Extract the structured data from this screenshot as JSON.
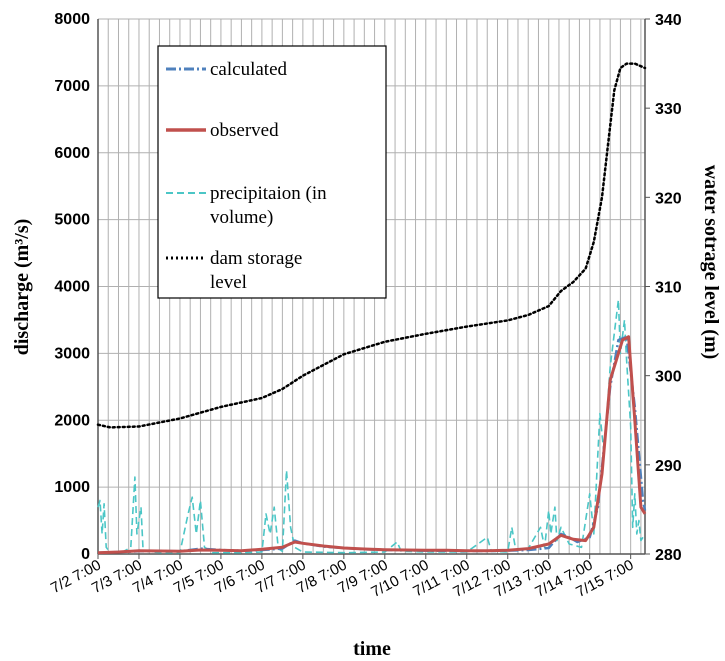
{
  "chart_data": {
    "type": "line",
    "xlabel": "time",
    "ylabel_left": "discharge (m³/s)",
    "ylabel_right": "water sotrage level (m)",
    "x_ticks": [
      "7/2 7:00",
      "7/3 7:00",
      "7/4 7:00",
      "7/5 7:00",
      "7/6 7:00",
      "7/7 7:00",
      "7/8 7:00",
      "7/9 7:00",
      "7/10 7:00",
      "7/11 7:00",
      "7/12 7:00",
      "7/13 7:00",
      "7/14 7:00",
      "7/15 7:00"
    ],
    "x_range_days": [
      0,
      13.35
    ],
    "ylim_left": [
      0,
      8000
    ],
    "y_ticks_left": [
      0,
      1000,
      2000,
      3000,
      4000,
      5000,
      6000,
      7000,
      8000
    ],
    "ylim_right": [
      280,
      340
    ],
    "y_ticks_right": [
      280,
      290,
      300,
      310,
      320,
      330,
      340
    ],
    "grid": true,
    "legend_position": "top-left",
    "series": [
      {
        "name": "calculated",
        "axis": "left",
        "color": "#4f81bd",
        "style": "dash-dot",
        "points": [
          [
            0,
            20
          ],
          [
            0.5,
            30
          ],
          [
            1,
            40
          ],
          [
            1.5,
            45
          ],
          [
            2,
            40
          ],
          [
            2.5,
            80
          ],
          [
            3,
            60
          ],
          [
            3.5,
            50
          ],
          [
            4,
            60
          ],
          [
            4.5,
            80
          ],
          [
            4.8,
            200
          ],
          [
            5,
            160
          ],
          [
            5.5,
            110
          ],
          [
            6,
            90
          ],
          [
            6.5,
            70
          ],
          [
            7,
            60
          ],
          [
            7.5,
            55
          ],
          [
            8,
            50
          ],
          [
            8.5,
            50
          ],
          [
            9,
            45
          ],
          [
            9.5,
            45
          ],
          [
            10,
            50
          ],
          [
            10.5,
            60
          ],
          [
            11,
            90
          ],
          [
            11.3,
            300
          ],
          [
            11.5,
            250
          ],
          [
            11.7,
            180
          ],
          [
            12,
            250
          ],
          [
            12.2,
            700
          ],
          [
            12.5,
            2500
          ],
          [
            12.7,
            3200
          ],
          [
            12.9,
            3250
          ],
          [
            13.1,
            2200
          ],
          [
            13.3,
            800
          ],
          [
            13.35,
            650
          ]
        ]
      },
      {
        "name": "observed",
        "axis": "left",
        "color": "#c0504d",
        "style": "solid",
        "points": [
          [
            0,
            20
          ],
          [
            0.5,
            30
          ],
          [
            1,
            50
          ],
          [
            1.5,
            45
          ],
          [
            2,
            40
          ],
          [
            2.5,
            60
          ],
          [
            3,
            55
          ],
          [
            3.5,
            50
          ],
          [
            4,
            70
          ],
          [
            4.5,
            100
          ],
          [
            4.8,
            180
          ],
          [
            5,
            160
          ],
          [
            5.5,
            120
          ],
          [
            6,
            90
          ],
          [
            6.5,
            75
          ],
          [
            7,
            65
          ],
          [
            7.5,
            60
          ],
          [
            8,
            55
          ],
          [
            8.5,
            55
          ],
          [
            9,
            50
          ],
          [
            9.5,
            50
          ],
          [
            10,
            55
          ],
          [
            10.5,
            80
          ],
          [
            11,
            150
          ],
          [
            11.3,
            280
          ],
          [
            11.6,
            220
          ],
          [
            11.9,
            200
          ],
          [
            12.1,
            400
          ],
          [
            12.3,
            1200
          ],
          [
            12.5,
            2600
          ],
          [
            12.8,
            3200
          ],
          [
            12.95,
            3250
          ],
          [
            13.1,
            2000
          ],
          [
            13.25,
            700
          ],
          [
            13.35,
            600
          ]
        ]
      },
      {
        "name": "precipitaion (in volume)",
        "axis": "left",
        "color": "#4bc6c6",
        "style": "dashed",
        "points": [
          [
            0,
            700
          ],
          [
            0.05,
            800
          ],
          [
            0.1,
            300
          ],
          [
            0.15,
            750
          ],
          [
            0.2,
            100
          ],
          [
            0.3,
            20
          ],
          [
            0.6,
            30
          ],
          [
            0.8,
            100
          ],
          [
            0.9,
            1150
          ],
          [
            0.95,
            300
          ],
          [
            1.05,
            700
          ],
          [
            1.1,
            50
          ],
          [
            1.5,
            20
          ],
          [
            2,
            20
          ],
          [
            2.2,
            600
          ],
          [
            2.3,
            850
          ],
          [
            2.4,
            300
          ],
          [
            2.5,
            800
          ],
          [
            2.6,
            100
          ],
          [
            2.8,
            20
          ],
          [
            3.5,
            20
          ],
          [
            4,
            30
          ],
          [
            4.1,
            600
          ],
          [
            4.2,
            300
          ],
          [
            4.3,
            700
          ],
          [
            4.4,
            80
          ],
          [
            4.5,
            40
          ],
          [
            4.6,
            1250
          ],
          [
            4.7,
            400
          ],
          [
            4.8,
            100
          ],
          [
            5,
            30
          ],
          [
            6,
            20
          ],
          [
            7,
            30
          ],
          [
            7.3,
            180
          ],
          [
            7.4,
            40
          ],
          [
            8,
            30
          ],
          [
            9,
            30
          ],
          [
            9.5,
            250
          ],
          [
            9.6,
            40
          ],
          [
            10,
            30
          ],
          [
            10.1,
            400
          ],
          [
            10.2,
            50
          ],
          [
            10.5,
            80
          ],
          [
            10.8,
            400
          ],
          [
            10.9,
            100
          ],
          [
            11,
            650
          ],
          [
            11.05,
            300
          ],
          [
            11.15,
            700
          ],
          [
            11.2,
            200
          ],
          [
            11.3,
            400
          ],
          [
            11.5,
            150
          ],
          [
            11.8,
            100
          ],
          [
            12,
            900
          ],
          [
            12.1,
            300
          ],
          [
            12.25,
            2100
          ],
          [
            12.35,
            1500
          ],
          [
            12.5,
            2800
          ],
          [
            12.6,
            3300
          ],
          [
            12.7,
            3800
          ],
          [
            12.75,
            3000
          ],
          [
            12.85,
            3500
          ],
          [
            12.9,
            2900
          ],
          [
            13.0,
            1900
          ],
          [
            13.05,
            400
          ],
          [
            13.1,
            900
          ],
          [
            13.15,
            300
          ],
          [
            13.2,
            500
          ],
          [
            13.25,
            200
          ],
          [
            13.35,
            300
          ]
        ]
      },
      {
        "name": "dam storage level",
        "axis": "right",
        "color": "#000000",
        "style": "dotted",
        "points": [
          [
            0,
            294.5
          ],
          [
            0.3,
            294.2
          ],
          [
            1,
            294.3
          ],
          [
            2,
            295.2
          ],
          [
            3,
            296.5
          ],
          [
            4,
            297.5
          ],
          [
            4.5,
            298.5
          ],
          [
            5,
            300.0
          ],
          [
            6,
            302.4
          ],
          [
            7,
            303.8
          ],
          [
            8,
            304.7
          ],
          [
            9,
            305.5
          ],
          [
            10,
            306.2
          ],
          [
            10.5,
            306.8
          ],
          [
            11,
            307.8
          ],
          [
            11.3,
            309.5
          ],
          [
            11.6,
            310.5
          ],
          [
            11.9,
            312.0
          ],
          [
            12.1,
            315.0
          ],
          [
            12.3,
            320.0
          ],
          [
            12.45,
            326.0
          ],
          [
            12.6,
            332.0
          ],
          [
            12.75,
            334.5
          ],
          [
            12.9,
            335.0
          ],
          [
            13.1,
            335.0
          ],
          [
            13.35,
            334.5
          ]
        ]
      }
    ],
    "legend": [
      {
        "label": "calculated"
      },
      {
        "label": "observed"
      },
      {
        "label": "precipitaion (in\nvolume)"
      },
      {
        "label": "dam storage\nlevel"
      }
    ]
  }
}
